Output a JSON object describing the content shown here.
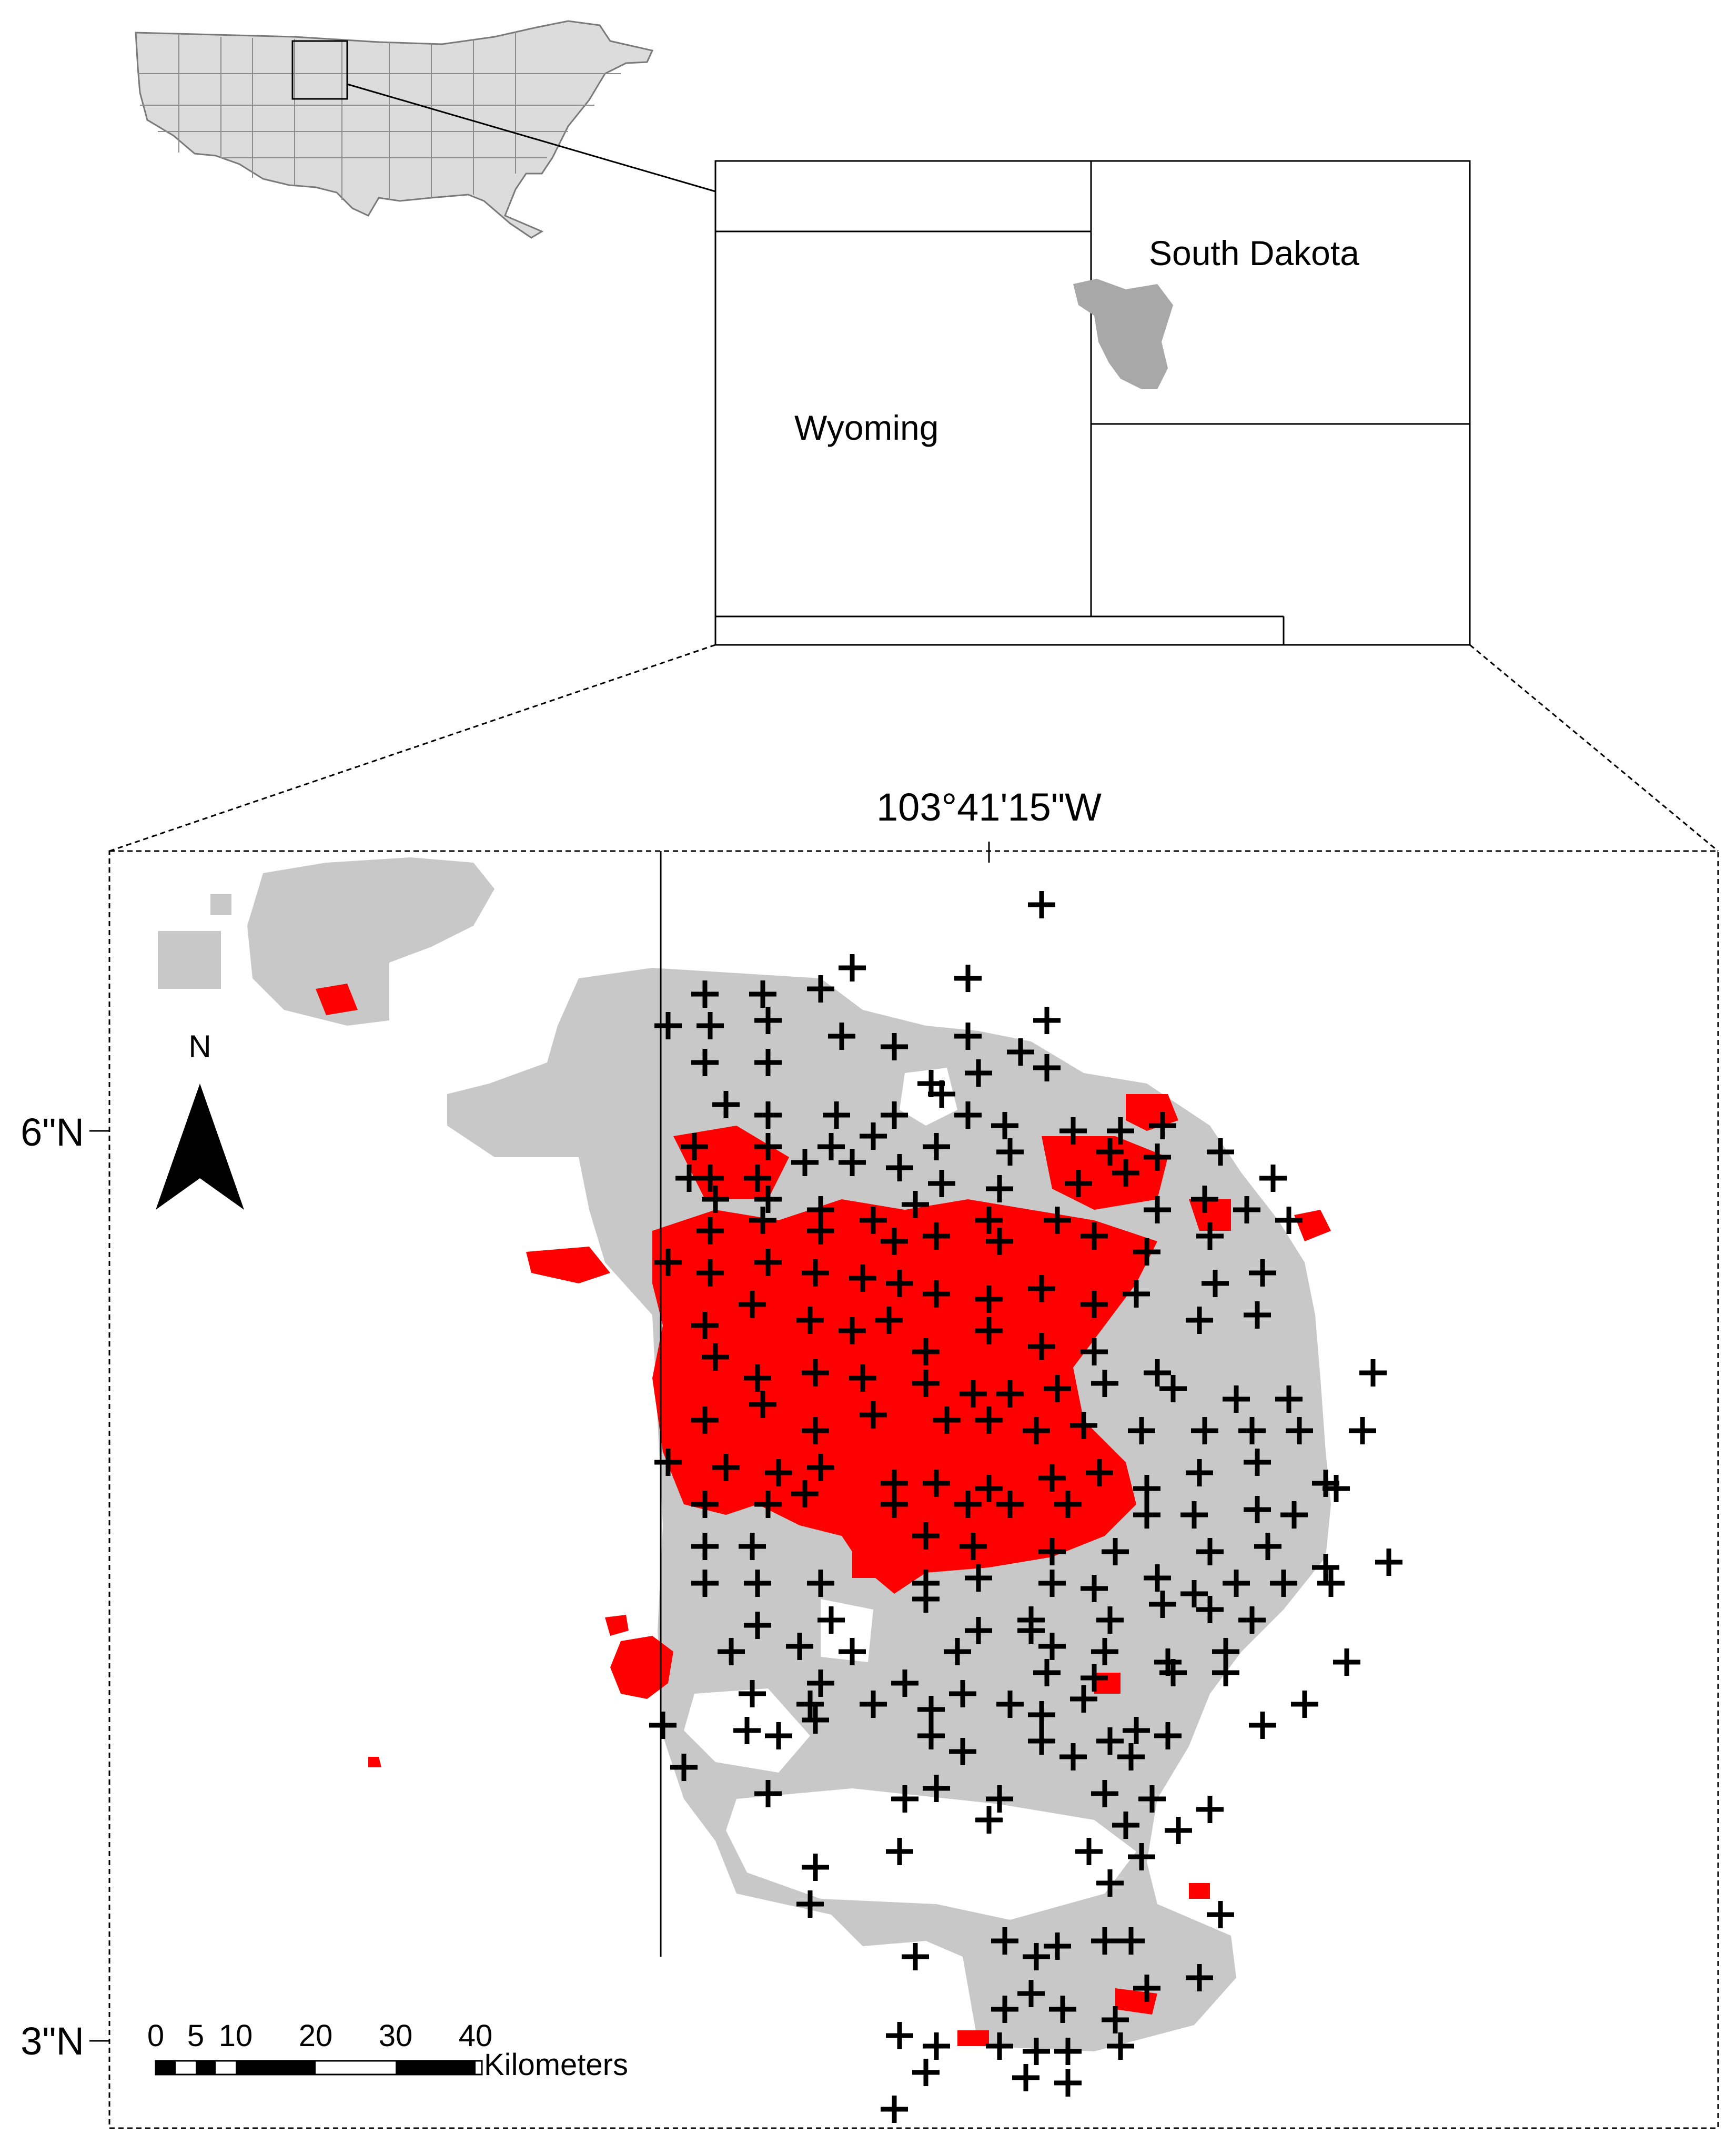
{
  "locator_map": {
    "state_labels": [
      "South Dakota",
      "Wyoming"
    ]
  },
  "main_map": {
    "longitude_label": "103°41'15\"W",
    "latitude_labels": [
      "6\"N",
      "3\"N"
    ],
    "north_arrow_label": "N",
    "scale_bar": {
      "ticks": [
        "0",
        "5",
        "10",
        "20",
        "30",
        "40"
      ],
      "units": "Kilometers"
    },
    "colors": {
      "study_area": "#c8c8c8",
      "highlight_patches": "#ff0000",
      "sample_points": "#000000"
    },
    "marker": "plus-sign"
  }
}
